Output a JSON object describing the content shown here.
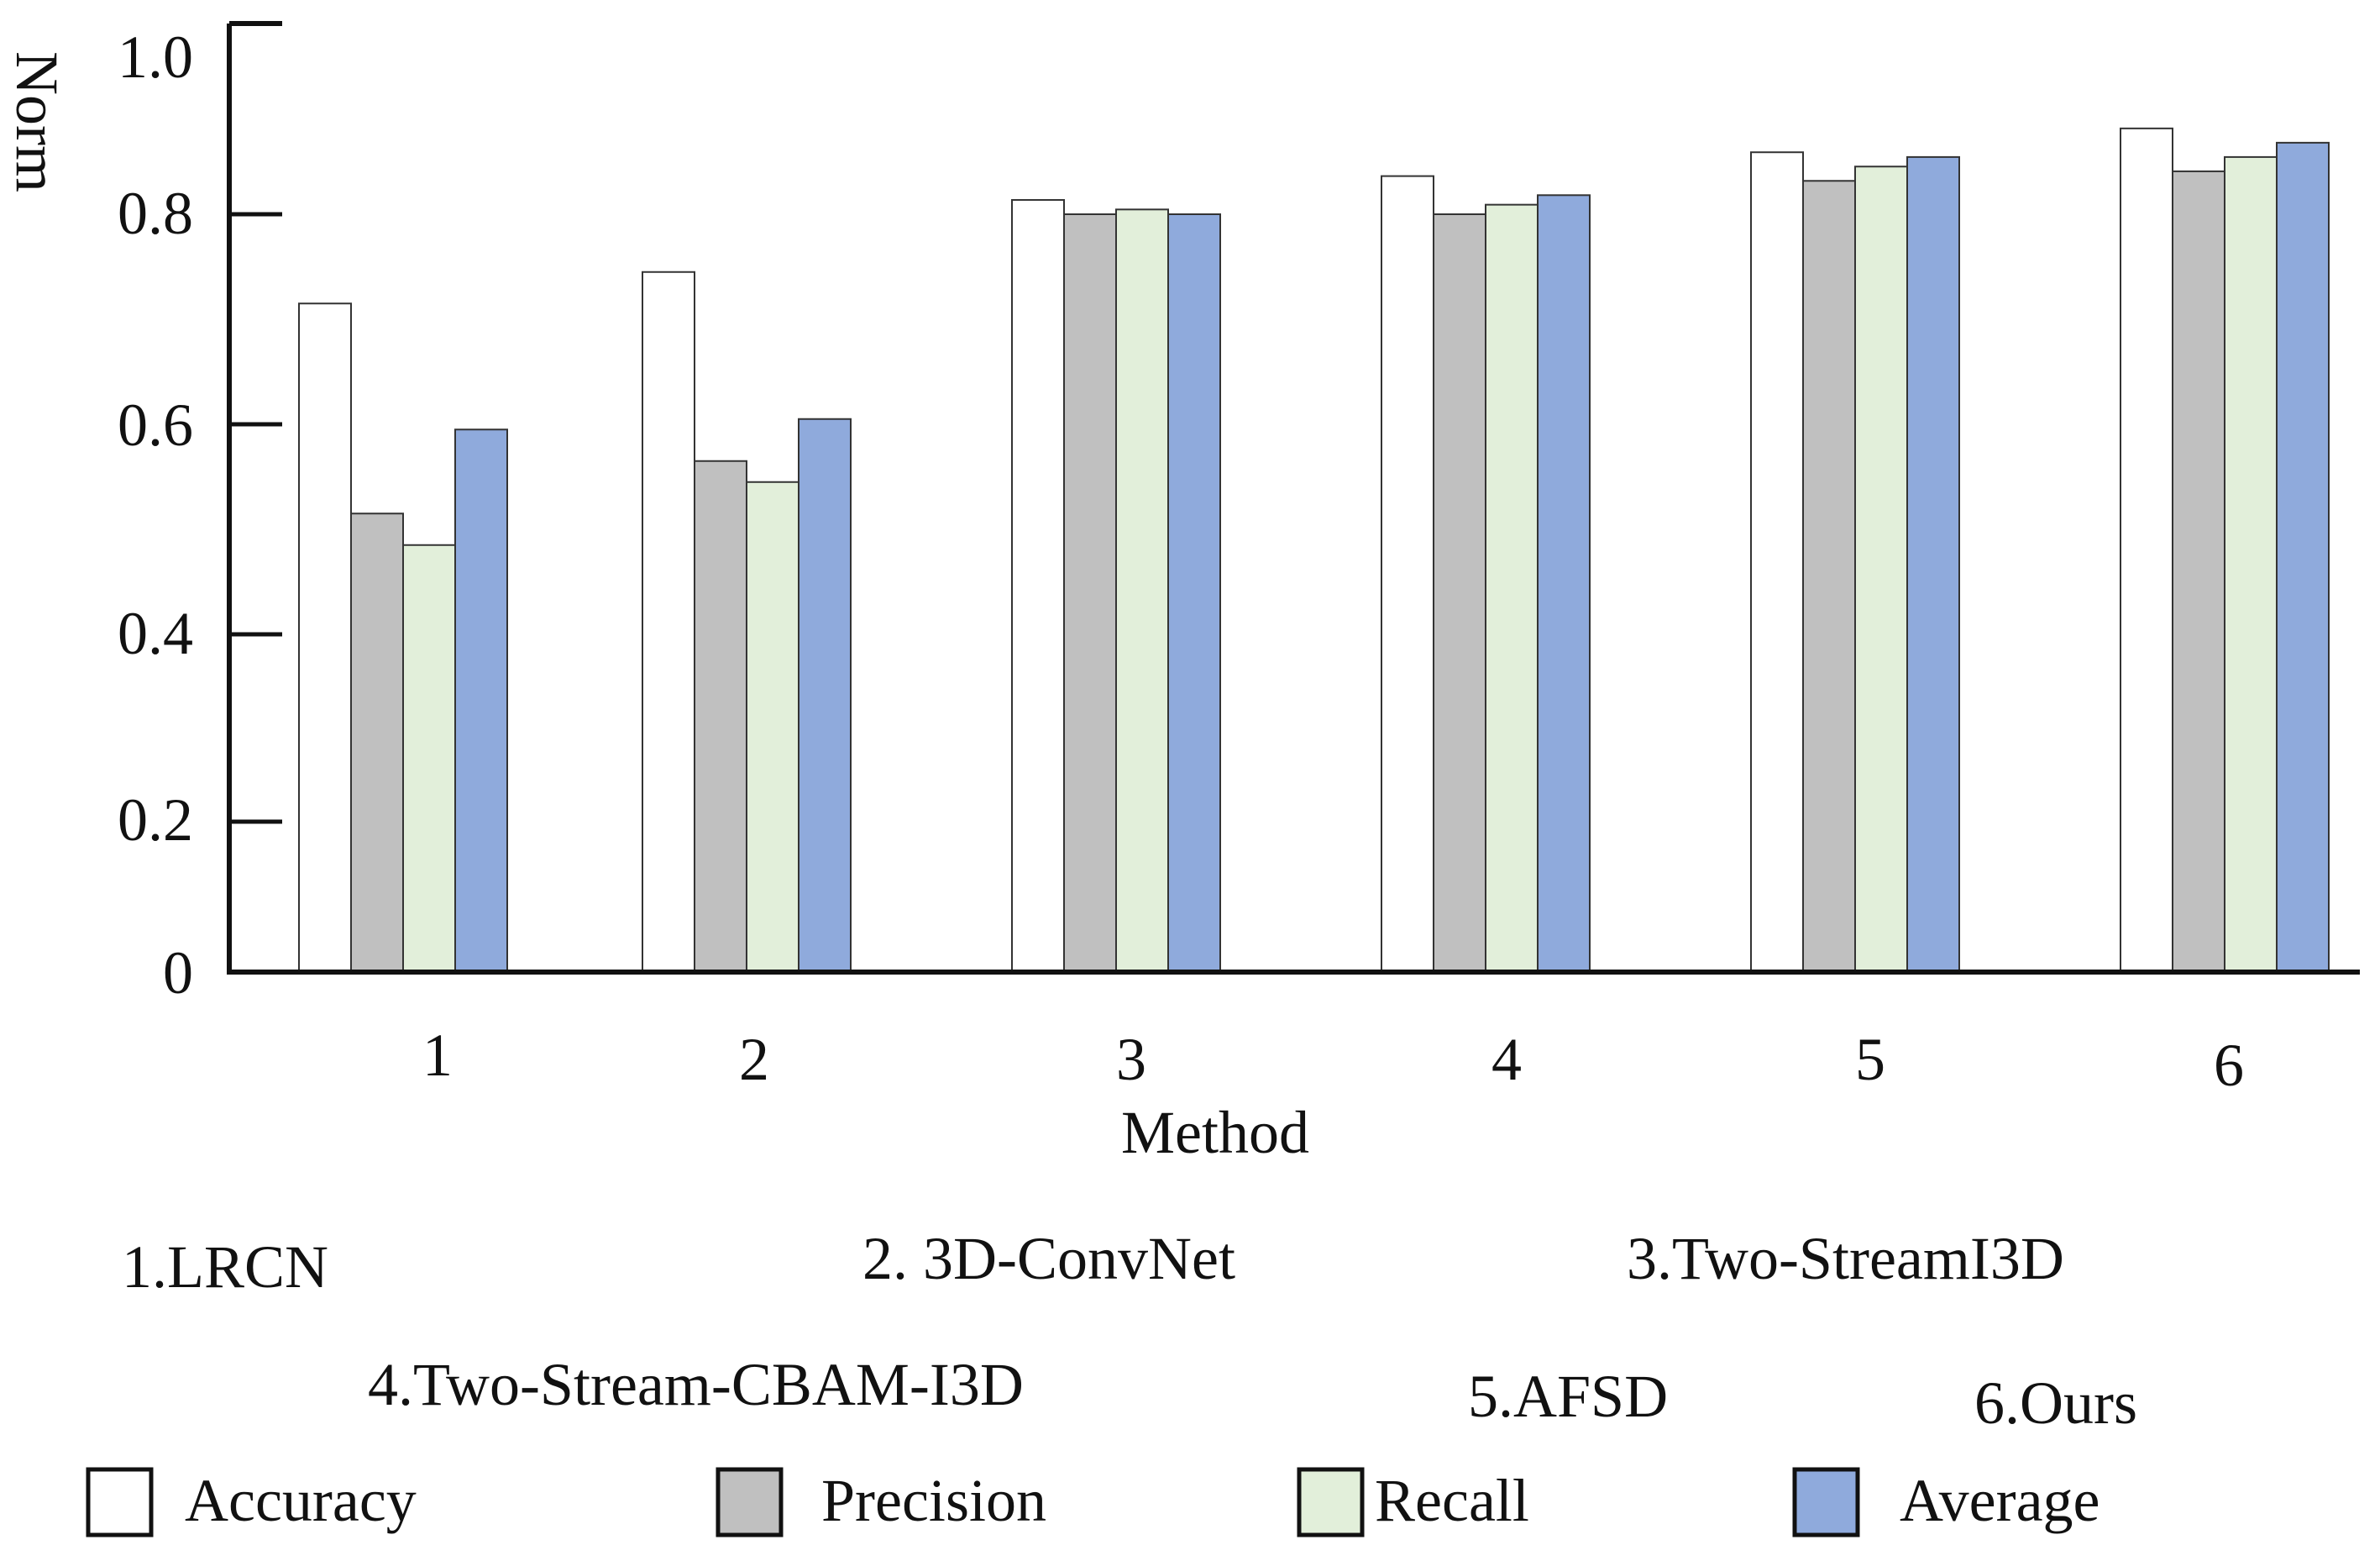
{
  "chart_data": {
    "type": "bar",
    "title": "",
    "xlabel": "Method",
    "ylabel": "Norm",
    "ylim": [
      0,
      1.0
    ],
    "yticks": [
      {
        "value": 0,
        "label": "0"
      },
      {
        "value": 0.2,
        "label": "0.2"
      },
      {
        "value": 0.4,
        "label": "0.4"
      },
      {
        "value": 0.6,
        "label": "0.6"
      },
      {
        "value": 0.8,
        "label": "0.8"
      },
      {
        "value": 1.0,
        "label": "1.0"
      }
    ],
    "categories": [
      "1",
      "2",
      "3",
      "4",
      "5",
      "6"
    ],
    "series": [
      {
        "name": "Accuracy",
        "color": "#ffffff",
        "values": [
          0.715,
          0.745,
          0.815,
          0.84,
          0.865,
          0.89
        ]
      },
      {
        "name": "Precision",
        "color": "#c0c0c0",
        "values": [
          0.515,
          0.565,
          0.8,
          0.8,
          0.835,
          0.845
        ]
      },
      {
        "name": "Recall",
        "color": "#e2efda",
        "values": [
          0.485,
          0.545,
          0.805,
          0.81,
          0.85,
          0.86
        ]
      },
      {
        "name": "Average",
        "color": "#8faadc",
        "values": [
          0.595,
          0.605,
          0.8,
          0.82,
          0.86,
          0.875
        ]
      }
    ],
    "grid": false,
    "legend_position": "bottom",
    "method_names": [
      "1.LRCN",
      "2. 3D-ConvNet",
      "3.Two-StreamI3D",
      "4.Two-Stream-CBAM-I3D",
      "5.AFSD",
      "6.Ours"
    ]
  }
}
